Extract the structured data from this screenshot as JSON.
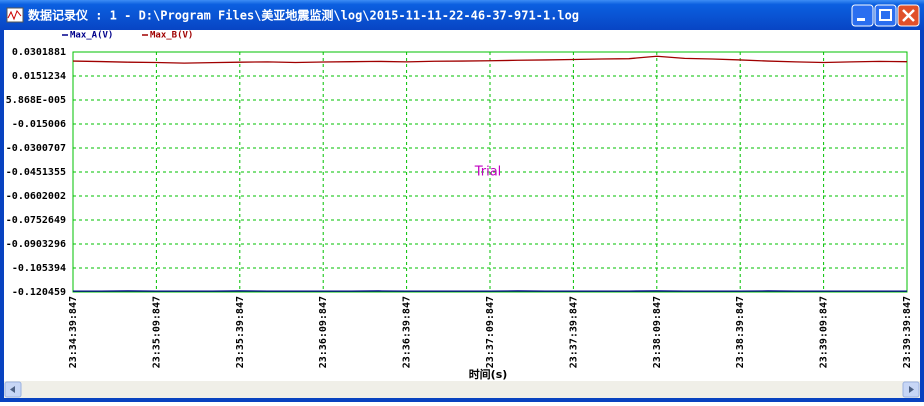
{
  "window": {
    "title": "数据记录仪 : 1 - D:\\Program Files\\美亚地震监测\\log\\2015-11-11-22-46-37-971-1.log"
  },
  "chart_data": {
    "type": "line",
    "x_label": "时间(s)",
    "annotation": "Trial",
    "x": [
      85679.847,
      85689.847,
      85699.847,
      85709.847,
      85719.847,
      85729.847,
      85739.847,
      85749.847,
      85759.847,
      85769.847,
      85779.847,
      85789.847,
      85799.847,
      85809.847,
      85819.847,
      85829.847,
      85839.847,
      85849.847,
      85859.847,
      85869.847,
      85879.847,
      85889.847,
      85899.847,
      85909.847,
      85919.847,
      85929.847,
      85939.847,
      85949.847,
      85959.847,
      85969.847,
      85979.847
    ],
    "series": [
      {
        "name": "Max_A(V)",
        "color": "#00008b",
        "values": [
          -0.1199,
          -0.1199,
          -0.1198,
          -0.1199,
          -0.1199,
          -0.1199,
          -0.1198,
          -0.1199,
          -0.1199,
          -0.1199,
          -0.1199,
          -0.1198,
          -0.1199,
          -0.1199,
          -0.1199,
          -0.1199,
          -0.1198,
          -0.1199,
          -0.1199,
          -0.1199,
          -0.1199,
          -0.1198,
          -0.1199,
          -0.1199,
          -0.1199,
          -0.1198,
          -0.1199,
          -0.1199,
          -0.1199,
          -0.1199,
          -0.1199
        ]
      },
      {
        "name": "Max_B(V)",
        "color": "#a00000",
        "values": [
          0.0245,
          0.0242,
          0.0238,
          0.0236,
          0.0232,
          0.0235,
          0.0238,
          0.024,
          0.0236,
          0.0239,
          0.0241,
          0.0243,
          0.024,
          0.0244,
          0.0245,
          0.0247,
          0.025,
          0.0252,
          0.0255,
          0.0258,
          0.026,
          0.0275,
          0.0262,
          0.0258,
          0.0252,
          0.0245,
          0.024,
          0.0236,
          0.024,
          0.0243,
          0.0241
        ]
      }
    ],
    "xlim": [
      85679.847,
      85979.847
    ],
    "xticks": [
      {
        "value": 85679.847,
        "label": "23:34:39:847"
      },
      {
        "value": 85709.847,
        "label": "23:35:09:847"
      },
      {
        "value": 85739.847,
        "label": "23:35:39:847"
      },
      {
        "value": 85769.847,
        "label": "23:36:09:847"
      },
      {
        "value": 85799.847,
        "label": "23:36:39:847"
      },
      {
        "value": 85829.847,
        "label": "23:37:09:847"
      },
      {
        "value": 85859.847,
        "label": "23:37:39:847"
      },
      {
        "value": 85889.847,
        "label": "23:38:09:847"
      },
      {
        "value": 85919.847,
        "label": "23:38:39:847"
      },
      {
        "value": 85949.847,
        "label": "23:39:09:847"
      },
      {
        "value": 85979.847,
        "label": "23:39:39:847"
      }
    ],
    "ylim": [
      -0.120459,
      0.0301881
    ],
    "yticks": [
      0.0301881,
      0.0151234,
      {
        "value": 5.868e-05,
        "label": "5.868E-005"
      },
      -0.015006,
      -0.0300707,
      -0.0451355,
      -0.0602002,
      -0.0752649,
      -0.0903296,
      -0.105394,
      -0.120459
    ],
    "grid": true,
    "grid_color": "#00c000",
    "annotation_color": "#c000c0"
  }
}
